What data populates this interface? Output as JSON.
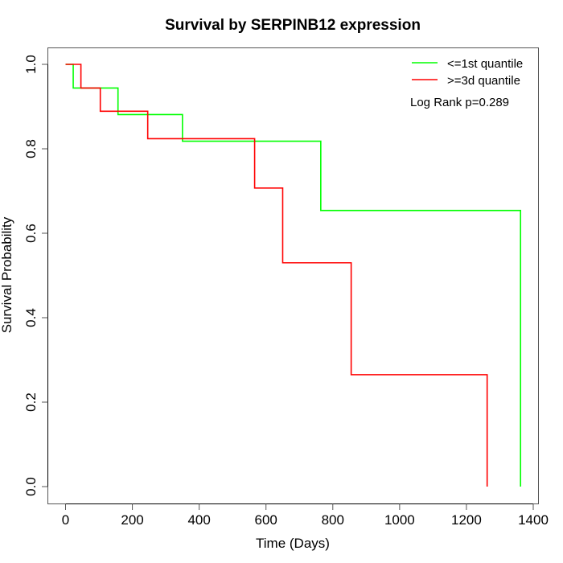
{
  "chart_data": {
    "type": "line",
    "subtype": "kaplan-meier-step",
    "title": "Survival by SERPINB12 expression",
    "xlabel": "Time (Days)",
    "ylabel": "Survival Probability",
    "xlim": [
      0,
      1400
    ],
    "ylim": [
      0,
      1
    ],
    "xticks": [
      0,
      200,
      400,
      600,
      800,
      1000,
      1200,
      1400
    ],
    "xtick_labels": [
      "0",
      "200",
      "400",
      "600",
      "800",
      "1000",
      "1200",
      "1400"
    ],
    "yticks": [
      0,
      0.2,
      0.4,
      0.6,
      0.8,
      1.0
    ],
    "ytick_labels": [
      "0.0",
      "0.2",
      "0.4",
      "0.6",
      "0.8",
      "1.0"
    ],
    "grid": false,
    "legend_position": "top-right",
    "annotation": "Log Rank p=0.289",
    "series": [
      {
        "name": "<=1st quantile",
        "color": "#00ff00",
        "x": [
          0,
          23,
          157,
          350,
          764,
          1362,
          1362
        ],
        "y": [
          1.0,
          0.944,
          0.881,
          0.818,
          0.654,
          0.654,
          0.0
        ]
      },
      {
        "name": ">=3d quantile",
        "color": "#ff0000",
        "x": [
          0,
          46,
          104,
          246,
          566,
          650,
          855,
          1262,
          1262
        ],
        "y": [
          1.0,
          0.944,
          0.889,
          0.824,
          0.707,
          0.53,
          0.265,
          0.265,
          0.0
        ]
      }
    ]
  }
}
